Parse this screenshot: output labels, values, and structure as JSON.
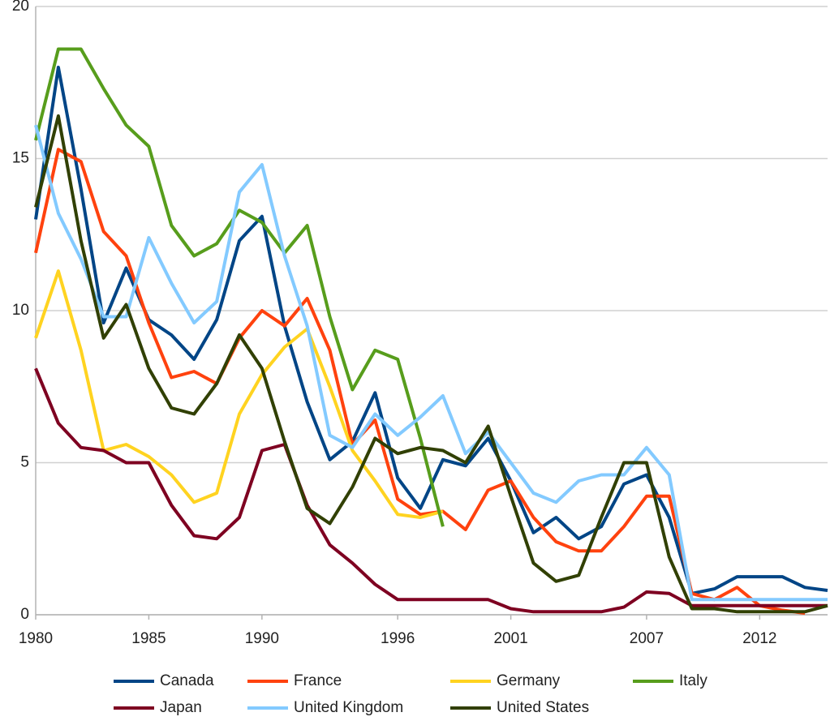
{
  "chart_data": {
    "type": "line",
    "x": [
      1980,
      1981,
      1982,
      1983,
      1984,
      1985,
      1986,
      1987,
      1988,
      1989,
      1990,
      1991,
      1992,
      1993,
      1994,
      1995,
      1996,
      1997,
      1998,
      1999,
      2000,
      2001,
      2002,
      2003,
      2004,
      2005,
      2006,
      2007,
      2008,
      2009,
      2010,
      2011,
      2012,
      2013,
      2014,
      2015
    ],
    "xlim": [
      1980,
      2015
    ],
    "xticks": [
      1980,
      1985,
      1990,
      1996,
      2001,
      2007,
      2012
    ],
    "ylim": [
      0,
      20
    ],
    "yticks": [
      0,
      5,
      10,
      15,
      20
    ],
    "grid": true,
    "legend": "bottom",
    "series": [
      {
        "name": "Canada",
        "color": "#004586",
        "values": [
          13.0,
          18.0,
          14.0,
          9.6,
          11.4,
          9.7,
          9.2,
          8.4,
          9.7,
          12.3,
          13.1,
          9.5,
          7.0,
          5.1,
          5.7,
          7.3,
          4.5,
          3.5,
          5.1,
          4.9,
          5.8,
          4.4,
          2.7,
          3.2,
          2.5,
          2.9,
          4.3,
          4.6,
          3.2,
          0.7,
          0.85,
          1.25,
          1.25,
          1.25,
          0.9,
          0.8
        ]
      },
      {
        "name": "France",
        "color": "#ff420e",
        "values": [
          11.9,
          15.3,
          14.9,
          12.6,
          11.8,
          9.6,
          7.8,
          8.0,
          7.6,
          9.1,
          10.0,
          9.5,
          10.4,
          8.7,
          5.6,
          6.4,
          3.8,
          3.3,
          3.4,
          2.8,
          4.1,
          4.4,
          3.2,
          2.4,
          2.1,
          2.1,
          2.9,
          3.9,
          3.9,
          0.7,
          0.5,
          0.9,
          0.3,
          0.15,
          0.05,
          null
        ]
      },
      {
        "name": "Germany",
        "color": "#ffd320",
        "values": [
          9.1,
          11.3,
          8.7,
          5.4,
          5.6,
          5.2,
          4.6,
          3.7,
          4.0,
          6.6,
          7.9,
          8.8,
          9.4,
          7.5,
          5.4,
          4.4,
          3.3,
          3.2,
          3.4,
          null,
          null,
          null,
          null,
          null,
          null,
          null,
          null,
          null,
          null,
          null,
          null,
          null,
          null,
          null,
          null,
          null
        ]
      },
      {
        "name": "Italy",
        "color": "#579d1c",
        "values": [
          15.6,
          18.6,
          18.6,
          17.3,
          16.1,
          15.4,
          12.8,
          11.8,
          12.2,
          13.3,
          12.9,
          11.9,
          12.8,
          9.8,
          7.4,
          8.7,
          8.4,
          5.8,
          2.9,
          null,
          null,
          null,
          null,
          null,
          null,
          null,
          null,
          null,
          null,
          null,
          null,
          null,
          null,
          null,
          null,
          null
        ]
      },
      {
        "name": "Japan",
        "color": "#7e0021",
        "values": [
          8.1,
          6.3,
          5.5,
          5.4,
          5.0,
          5.0,
          3.6,
          2.6,
          2.5,
          3.2,
          5.4,
          5.6,
          3.6,
          2.3,
          1.7,
          1.0,
          0.5,
          0.5,
          0.5,
          0.5,
          0.5,
          0.2,
          0.1,
          0.1,
          0.1,
          0.1,
          0.25,
          0.75,
          0.7,
          0.3,
          0.3,
          0.3,
          0.3,
          0.3,
          0.3,
          0.3
        ]
      },
      {
        "name": "United Kingdom",
        "color": "#83caff",
        "values": [
          16.1,
          13.2,
          11.7,
          9.8,
          9.8,
          12.4,
          10.9,
          9.6,
          10.3,
          13.9,
          14.8,
          11.8,
          9.5,
          5.9,
          5.5,
          6.6,
          5.9,
          6.5,
          7.2,
          5.3,
          6.0,
          5.0,
          4.0,
          3.7,
          4.4,
          4.6,
          4.6,
          5.5,
          4.6,
          0.5,
          0.5,
          0.5,
          0.5,
          0.5,
          0.5,
          0.5
        ]
      },
      {
        "name": "United States",
        "color": "#314004",
        "values": [
          13.4,
          16.4,
          12.3,
          9.1,
          10.2,
          8.1,
          6.8,
          6.6,
          7.6,
          9.2,
          8.1,
          5.7,
          3.5,
          3.0,
          4.2,
          5.8,
          5.3,
          5.5,
          5.4,
          5.0,
          6.2,
          3.9,
          1.7,
          1.1,
          1.3,
          3.2,
          5.0,
          5.0,
          1.9,
          0.2,
          0.2,
          0.1,
          0.1,
          0.1,
          0.1,
          0.3
        ]
      }
    ]
  }
}
